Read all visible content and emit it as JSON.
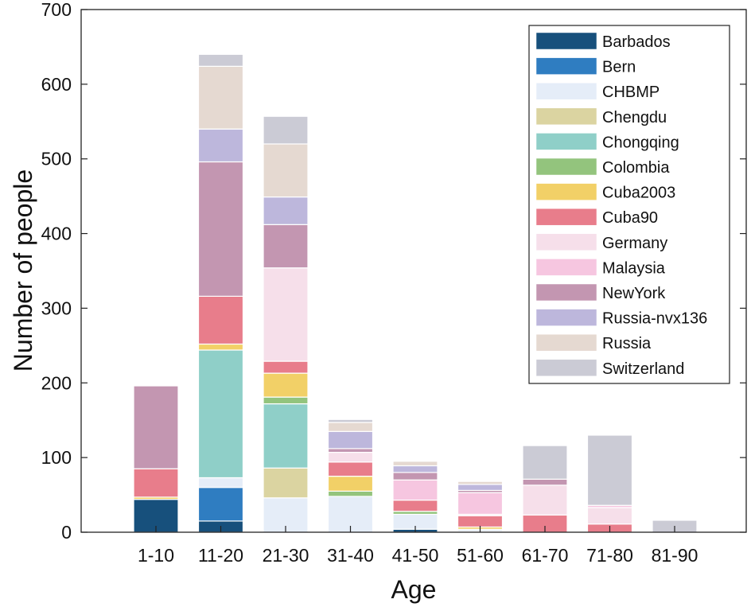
{
  "chart_data": {
    "type": "bar",
    "stacked": true,
    "title": "",
    "xlabel": "Age",
    "ylabel": "Number of people",
    "ylim": [
      0,
      700
    ],
    "yticks": [
      0,
      100,
      200,
      300,
      400,
      500,
      600,
      700
    ],
    "grid": false,
    "legend_position": "top-right",
    "categories": [
      "1-10",
      "11-20",
      "21-30",
      "31-40",
      "41-50",
      "51-60",
      "61-70",
      "71-80",
      "81-90"
    ],
    "series": [
      {
        "name": "Barbados",
        "color": "#17507c",
        "values": [
          44,
          15,
          0,
          0,
          4,
          1,
          0,
          0,
          0
        ]
      },
      {
        "name": "Bern",
        "color": "#2f7dc1",
        "values": [
          0,
          45,
          0,
          0,
          0,
          0,
          0,
          0,
          0
        ]
      },
      {
        "name": "CHBMP",
        "color": "#e5edf8",
        "values": [
          0,
          13,
          46,
          48,
          20,
          3,
          0,
          0,
          0
        ]
      },
      {
        "name": "Chengdu",
        "color": "#dbd4a1",
        "values": [
          0,
          0,
          40,
          0,
          0,
          0,
          0,
          0,
          0
        ]
      },
      {
        "name": "Chongqing",
        "color": "#8fcfc8",
        "values": [
          0,
          171,
          86,
          0,
          0,
          0,
          0,
          0,
          0
        ]
      },
      {
        "name": "Colombia",
        "color": "#93c47d",
        "values": [
          0,
          0,
          9,
          7,
          4,
          0,
          0,
          0,
          0
        ]
      },
      {
        "name": "Cuba2003",
        "color": "#f2d067",
        "values": [
          3,
          8,
          32,
          20,
          0,
          3,
          0,
          0,
          0
        ]
      },
      {
        "name": "Cuba90",
        "color": "#e87d8b",
        "values": [
          38,
          64,
          16,
          19,
          15,
          15,
          23,
          11,
          0
        ]
      },
      {
        "name": "Germany",
        "color": "#f6dfea",
        "values": [
          0,
          0,
          125,
          13,
          0,
          2,
          40,
          22,
          0
        ]
      },
      {
        "name": "Malaysia",
        "color": "#f6c6e0",
        "values": [
          0,
          0,
          0,
          0,
          27,
          29,
          0,
          3,
          0
        ]
      },
      {
        "name": "NewYork",
        "color": "#c396b1",
        "values": [
          111,
          180,
          58,
          5,
          10,
          3,
          8,
          0,
          0
        ]
      },
      {
        "name": "Russia-nvx136",
        "color": "#bdb7dc",
        "values": [
          0,
          44,
          37,
          23,
          9,
          8,
          0,
          0,
          0
        ]
      },
      {
        "name": "Russia",
        "color": "#e5d9d1",
        "values": [
          0,
          84,
          71,
          12,
          6,
          4,
          0,
          0,
          0
        ]
      },
      {
        "name": "Switzerland",
        "color": "#cbcbd5",
        "values": [
          0,
          16,
          37,
          4,
          0,
          0,
          45,
          94,
          16
        ]
      }
    ]
  }
}
